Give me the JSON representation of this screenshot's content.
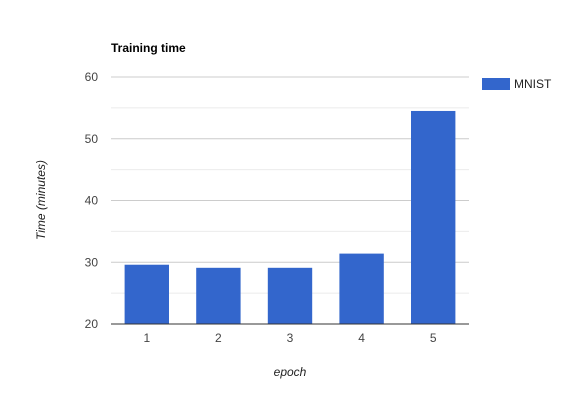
{
  "chart_data": {
    "type": "bar",
    "title": "Training time",
    "xlabel": "epoch",
    "ylabel": "Time  (minutes)",
    "categories": [
      "1",
      "2",
      "3",
      "4",
      "5"
    ],
    "series": [
      {
        "name": "MNIST",
        "values": [
          29.6,
          29.1,
          29.1,
          31.4,
          54.5
        ]
      }
    ],
    "ylim": [
      20,
      60
    ],
    "yticks": [
      "20",
      "30",
      "40",
      "50",
      "60"
    ],
    "grid": true,
    "legend_position": "right",
    "bar_color": "#3366cc"
  }
}
